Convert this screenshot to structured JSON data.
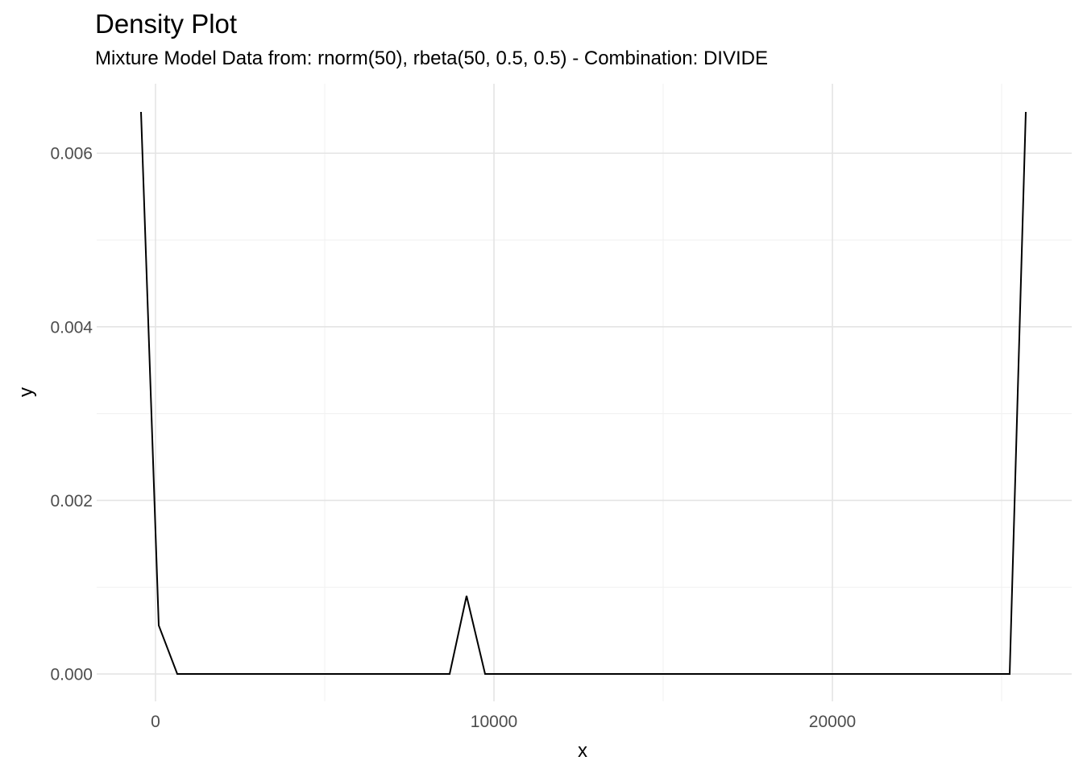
{
  "chart_data": {
    "type": "line",
    "title": "Density Plot",
    "subtitle": "Mixture Model Data from: rnorm(50), rbeta(50, 0.5, 0.5) - Combination: DIVIDE",
    "xlabel": "x",
    "ylabel": "y",
    "xlim": [
      -1738,
      27071
    ],
    "ylim": [
      -0.000315,
      0.0068
    ],
    "x_major_ticks": [
      0,
      10000,
      20000
    ],
    "x_tick_labels": [
      "0",
      "10000",
      "20000"
    ],
    "x_minor_ticks": [
      5000,
      15000,
      25000
    ],
    "y_major_ticks": [
      0,
      0.002,
      0.004,
      0.006
    ],
    "y_tick_labels": [
      "0.000",
      "0.002",
      "0.004",
      "0.006"
    ],
    "y_minor_ticks": [
      0.001,
      0.003,
      0.005
    ],
    "grid": "on",
    "legend": "none",
    "series": [
      {
        "name": "density",
        "points": [
          [
            -429,
            0.006475
          ],
          [
            95,
            0.00056
          ],
          [
            643,
            0
          ],
          [
            8690,
            0
          ],
          [
            9190,
            0.0009
          ],
          [
            9738,
            0
          ],
          [
            25238,
            0
          ],
          [
            25714,
            0.006475
          ]
        ]
      }
    ],
    "colors": {
      "line": "#000000",
      "grid_major": "#E4E4E4",
      "grid_minor": "#F1F1F1",
      "tick_text": "#4D4D4D",
      "title_text": "#000000",
      "background": "#FFFFFF"
    }
  }
}
